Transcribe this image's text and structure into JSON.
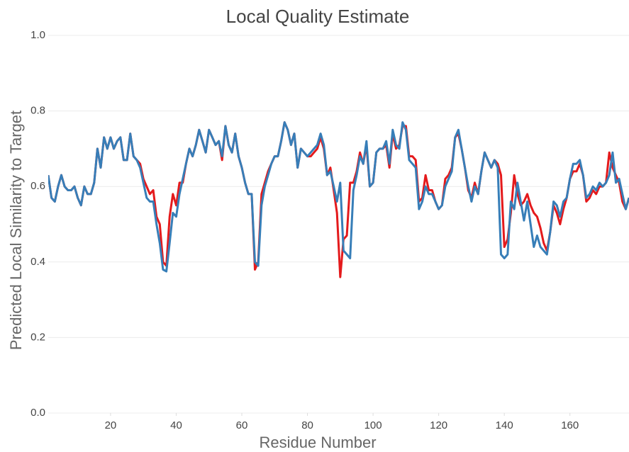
{
  "chart_data": {
    "type": "line",
    "title": "Local Quality Estimate",
    "x_label": "Residue Number",
    "y_label": "Predicted Local Similarity to Target",
    "x": [
      1,
      2,
      3,
      4,
      5,
      6,
      7,
      8,
      9,
      10,
      11,
      12,
      13,
      14,
      15,
      16,
      17,
      18,
      19,
      20,
      21,
      22,
      23,
      24,
      25,
      26,
      27,
      28,
      29,
      30,
      31,
      32,
      33,
      34,
      35,
      36,
      37,
      38,
      39,
      40,
      41,
      42,
      43,
      44,
      45,
      46,
      47,
      48,
      49,
      50,
      51,
      52,
      53,
      54,
      55,
      56,
      57,
      58,
      59,
      60,
      61,
      62,
      63,
      64,
      65,
      66,
      67,
      68,
      69,
      70,
      71,
      72,
      73,
      74,
      75,
      76,
      77,
      78,
      79,
      80,
      81,
      82,
      83,
      84,
      85,
      86,
      87,
      88,
      89,
      90,
      91,
      92,
      93,
      94,
      95,
      96,
      97,
      98,
      99,
      100,
      101,
      102,
      103,
      104,
      105,
      106,
      107,
      108,
      109,
      110,
      111,
      112,
      113,
      114,
      115,
      116,
      117,
      118,
      119,
      120,
      121,
      122,
      123,
      124,
      125,
      126,
      127,
      128,
      129,
      130,
      131,
      132,
      133,
      134,
      135,
      136,
      137,
      138,
      139,
      140,
      141,
      142,
      143,
      144,
      145,
      146,
      147,
      148,
      149,
      150,
      151,
      152,
      153,
      154,
      155,
      156,
      157,
      158,
      159,
      160,
      161,
      162,
      163,
      164,
      165,
      166,
      167,
      168,
      169,
      170,
      171,
      172,
      173,
      174,
      175,
      176,
      177,
      178
    ],
    "series": [
      {
        "color": "#e41a1c",
        "values": [
          0.63,
          0.57,
          0.56,
          0.6,
          0.63,
          0.6,
          0.59,
          0.59,
          0.6,
          0.57,
          0.55,
          0.6,
          0.58,
          0.58,
          0.61,
          0.7,
          0.65,
          0.73,
          0.7,
          0.73,
          0.7,
          0.72,
          0.73,
          0.67,
          0.67,
          0.74,
          0.68,
          0.67,
          0.66,
          0.62,
          0.6,
          0.58,
          0.59,
          0.52,
          0.5,
          0.4,
          0.39,
          0.52,
          0.58,
          0.55,
          0.61,
          0.61,
          0.66,
          0.7,
          0.68,
          0.71,
          0.75,
          0.72,
          0.69,
          0.75,
          0.73,
          0.71,
          0.72,
          0.67,
          0.76,
          0.71,
          0.69,
          0.74,
          0.68,
          0.65,
          0.61,
          0.58,
          0.58,
          0.38,
          0.4,
          0.58,
          0.61,
          0.64,
          0.66,
          0.68,
          0.68,
          0.72,
          0.77,
          0.75,
          0.71,
          0.74,
          0.65,
          0.7,
          0.69,
          0.68,
          0.68,
          0.69,
          0.7,
          0.73,
          0.7,
          0.63,
          0.65,
          0.59,
          0.53,
          0.36,
          0.46,
          0.47,
          0.61,
          0.61,
          0.64,
          0.69,
          0.66,
          0.71,
          0.6,
          0.61,
          0.69,
          0.7,
          0.7,
          0.71,
          0.65,
          0.74,
          0.7,
          0.71,
          0.76,
          0.76,
          0.68,
          0.68,
          0.67,
          0.56,
          0.57,
          0.63,
          0.59,
          0.59,
          0.56,
          0.54,
          0.55,
          0.62,
          0.63,
          0.65,
          0.73,
          0.74,
          0.7,
          0.65,
          0.59,
          0.57,
          0.61,
          0.58,
          0.64,
          0.69,
          0.67,
          0.65,
          0.67,
          0.66,
          0.63,
          0.44,
          0.46,
          0.53,
          0.63,
          0.58,
          0.55,
          0.56,
          0.58,
          0.55,
          0.53,
          0.52,
          0.49,
          0.45,
          0.43,
          0.48,
          0.55,
          0.53,
          0.5,
          0.54,
          0.57,
          0.62,
          0.64,
          0.64,
          0.66,
          0.63,
          0.56,
          0.57,
          0.59,
          0.58,
          0.6,
          0.6,
          0.61,
          0.69,
          0.65,
          0.63,
          0.61,
          0.56,
          0.54,
          0.57
        ]
      },
      {
        "color": "#377eb8",
        "values": [
          0.63,
          0.57,
          0.56,
          0.6,
          0.63,
          0.6,
          0.59,
          0.59,
          0.6,
          0.57,
          0.55,
          0.6,
          0.58,
          0.58,
          0.61,
          0.7,
          0.65,
          0.73,
          0.7,
          0.73,
          0.7,
          0.72,
          0.73,
          0.67,
          0.67,
          0.74,
          0.68,
          0.67,
          0.65,
          0.61,
          0.57,
          0.56,
          0.56,
          0.5,
          0.45,
          0.38,
          0.375,
          0.45,
          0.53,
          0.52,
          0.58,
          0.62,
          0.66,
          0.7,
          0.68,
          0.71,
          0.75,
          0.72,
          0.69,
          0.75,
          0.73,
          0.71,
          0.72,
          0.68,
          0.76,
          0.71,
          0.69,
          0.74,
          0.68,
          0.65,
          0.61,
          0.58,
          0.58,
          0.4,
          0.39,
          0.55,
          0.6,
          0.63,
          0.66,
          0.68,
          0.68,
          0.72,
          0.77,
          0.75,
          0.71,
          0.74,
          0.65,
          0.7,
          0.69,
          0.68,
          0.69,
          0.7,
          0.71,
          0.74,
          0.71,
          0.63,
          0.64,
          0.6,
          0.56,
          0.61,
          0.43,
          0.42,
          0.41,
          0.59,
          0.63,
          0.68,
          0.66,
          0.72,
          0.6,
          0.61,
          0.69,
          0.7,
          0.7,
          0.72,
          0.66,
          0.75,
          0.71,
          0.7,
          0.77,
          0.75,
          0.67,
          0.66,
          0.65,
          0.54,
          0.56,
          0.6,
          0.58,
          0.58,
          0.56,
          0.54,
          0.55,
          0.6,
          0.62,
          0.64,
          0.73,
          0.75,
          0.7,
          0.65,
          0.6,
          0.56,
          0.6,
          0.58,
          0.64,
          0.69,
          0.67,
          0.65,
          0.67,
          0.65,
          0.42,
          0.41,
          0.42,
          0.56,
          0.54,
          0.61,
          0.56,
          0.51,
          0.56,
          0.5,
          0.44,
          0.47,
          0.44,
          0.43,
          0.42,
          0.48,
          0.56,
          0.55,
          0.52,
          0.56,
          0.57,
          0.62,
          0.66,
          0.66,
          0.67,
          0.63,
          0.57,
          0.58,
          0.6,
          0.59,
          0.61,
          0.6,
          0.61,
          0.63,
          0.69,
          0.61,
          0.62,
          0.58,
          0.54,
          0.57
        ]
      }
    ],
    "xlim": [
      1,
      178
    ],
    "xticks": [
      20,
      40,
      60,
      80,
      100,
      120,
      140,
      160
    ],
    "ylim": [
      0,
      1
    ],
    "yticks": [
      {
        "value": 0,
        "label": "0.0"
      },
      0.2,
      0.4,
      0.6,
      0.8,
      {
        "value": 1,
        "label": "1.0"
      }
    ],
    "grid": true
  }
}
